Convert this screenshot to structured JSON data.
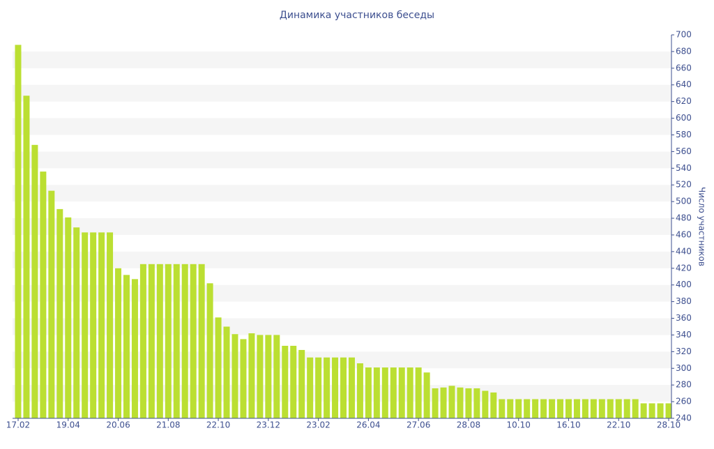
{
  "chart_data": {
    "type": "bar",
    "title": "Динамика участников беседы",
    "y_axis_label": "Число участников",
    "color": "#bbdf32",
    "categories": [
      "17.02",
      null,
      null,
      null,
      null,
      null,
      "19.04",
      null,
      null,
      null,
      null,
      null,
      "20.06",
      null,
      null,
      null,
      null,
      null,
      "21.08",
      null,
      null,
      null,
      null,
      null,
      "22.10",
      null,
      null,
      null,
      null,
      null,
      "23.12",
      null,
      null,
      null,
      null,
      null,
      "23.02",
      null,
      null,
      null,
      null,
      null,
      "26.04",
      null,
      null,
      null,
      null,
      null,
      "27.06",
      null,
      null,
      null,
      null,
      null,
      "28.08",
      null,
      null,
      null,
      null,
      null,
      "10.10",
      null,
      null,
      null,
      null,
      null,
      "16.10",
      null,
      null,
      null,
      null,
      null,
      "22.10",
      null,
      null,
      null,
      null,
      null,
      "28.10"
    ],
    "values": [
      688,
      627,
      568,
      536,
      513,
      491,
      481,
      469,
      463,
      463,
      463,
      463,
      420,
      412,
      407,
      425,
      425,
      425,
      425,
      425,
      425,
      425,
      425,
      402,
      361,
      350,
      341,
      335,
      342,
      340,
      340,
      340,
      327,
      327,
      322,
      313,
      313,
      313,
      313,
      313,
      313,
      306,
      301,
      301,
      301,
      301,
      301,
      301,
      301,
      295,
      276,
      277,
      279,
      277,
      276,
      276,
      273,
      271,
      263,
      263,
      263,
      263,
      263,
      263,
      263,
      263,
      263,
      263,
      263,
      263,
      263,
      263,
      263,
      263,
      263,
      258,
      258,
      258,
      258
    ],
    "ylim": [
      240,
      700
    ],
    "yticks": [
      240,
      260,
      280,
      300,
      320,
      340,
      360,
      380,
      400,
      420,
      440,
      460,
      480,
      500,
      520,
      540,
      560,
      580,
      600,
      620,
      640,
      660,
      680,
      700
    ],
    "grid": true
  }
}
